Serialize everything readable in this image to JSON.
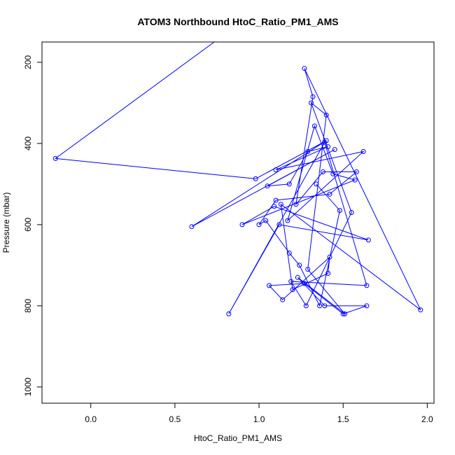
{
  "chart_data": {
    "type": "line",
    "title": "ATOM3 Northbound HtoC_Ratio_PM1_AMS",
    "xlabel": "HtoC_Ratio_PM1_AMS",
    "ylabel": "Pressure (mbar)",
    "xlim": [
      -0.29,
      2.04
    ],
    "ylim": [
      1040,
      150
    ],
    "y_reversed": true,
    "xticks": [
      0.0,
      0.5,
      1.0,
      1.5,
      2.0
    ],
    "xtick_labels": [
      "0.0",
      "0.5",
      "1.0",
      "1.5",
      "2.0"
    ],
    "yticks": [
      200,
      400,
      600,
      800,
      1000
    ],
    "ytick_labels": [
      "200",
      "400",
      "600",
      "800",
      "1000"
    ],
    "grid": false,
    "colors": {
      "series": "#0000ff",
      "axis": "#000000",
      "background": "#ffffff"
    },
    "series": [
      {
        "marker": "open-circle",
        "x": [
          0.75,
          -0.21,
          0.98,
          1.4,
          0.6,
          1.45,
          1.05,
          1.18,
          1.29,
          1.41,
          1.1,
          1.62,
          1.17,
          1.33,
          1.44,
          1.57,
          0.9,
          1.09,
          1.65,
          1.12,
          0.82,
          1.39,
          1.64,
          1.19,
          1.28,
          1.55,
          1.31,
          1.4,
          1.29,
          1.51,
          1.23,
          1.39,
          1.64,
          1.5,
          1.27,
          1.06,
          1.14,
          1.42,
          1.41,
          1.2,
          1.13,
          1.96,
          1.27,
          1.32,
          1.22,
          1.38,
          1.58,
          1.42,
          1.1,
          1.0,
          1.04,
          1.18,
          1.24,
          1.36,
          1.48,
          1.34
        ],
        "y": [
          145,
          437,
          487,
          393,
          605,
          415,
          505,
          500,
          420,
          408,
          465,
          420,
          590,
          357,
          475,
          490,
          600,
          555,
          638,
          600,
          820,
          397,
          750,
          740,
          800,
          570,
          300,
          330,
          710,
          820,
          730,
          800,
          800,
          820,
          745,
          750,
          785,
          680,
          720,
          760,
          550,
          810,
          215,
          285,
          550,
          470,
          470,
          525,
          540,
          600,
          590,
          670,
          700,
          800,
          565,
          500
        ]
      }
    ]
  }
}
